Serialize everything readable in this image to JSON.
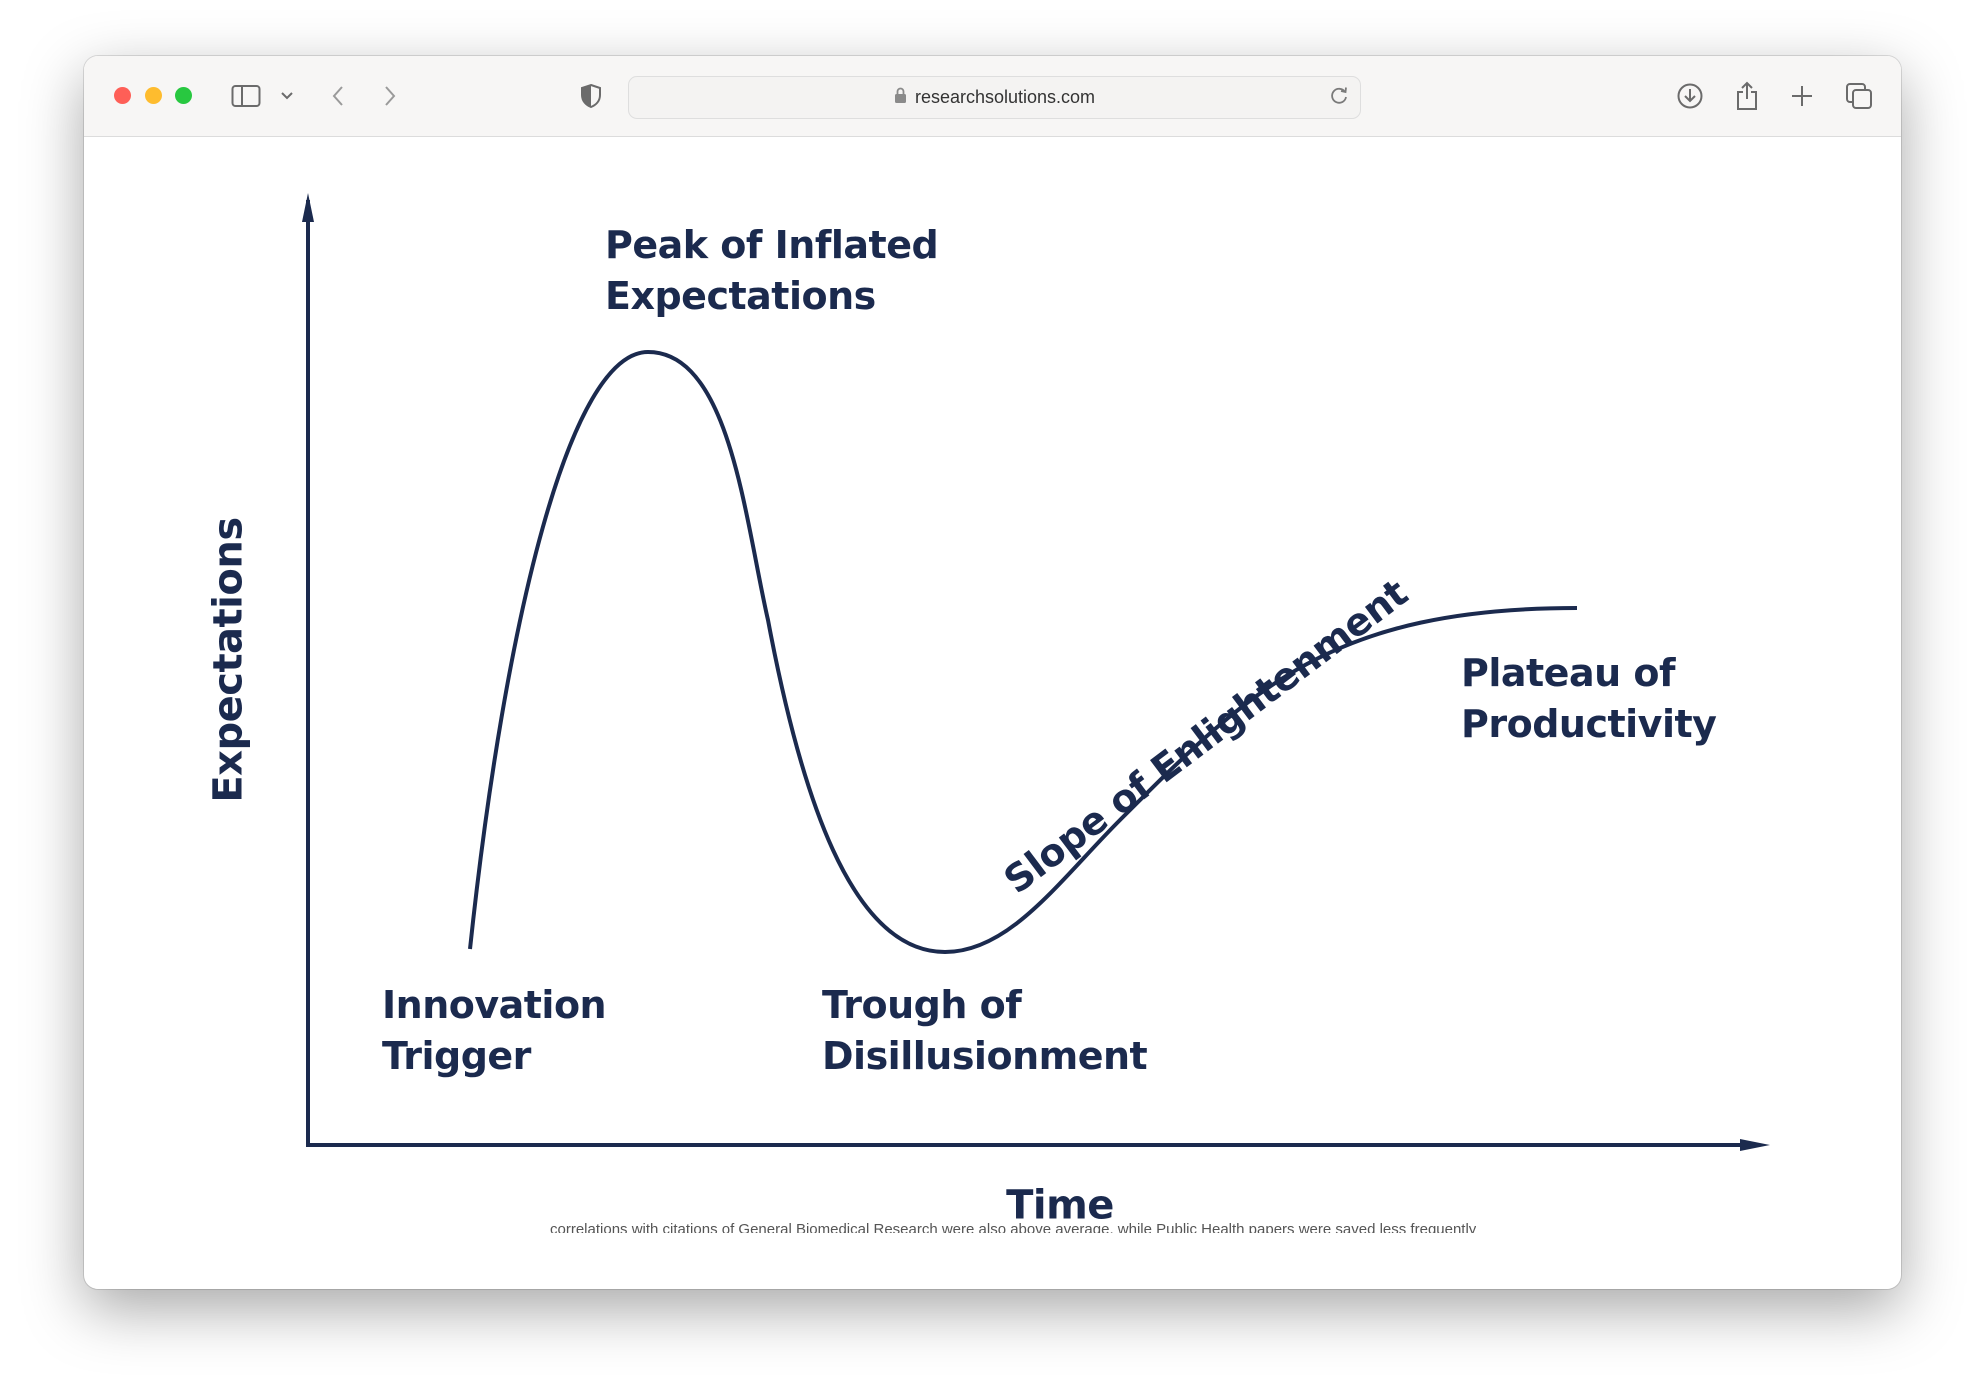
{
  "browser": {
    "url": "researchsolutions.com",
    "traffic_lights": {
      "close": "#fe5f57",
      "minimize": "#febc2e",
      "maximize": "#28c840"
    },
    "icons": [
      "sidebar-icon",
      "chevron-down-icon",
      "back-icon",
      "forward-icon",
      "shield-icon",
      "lock-icon",
      "reload-icon",
      "download-icon",
      "share-icon",
      "plus-icon",
      "tabs-icon"
    ]
  },
  "diagram": {
    "y_axis_label": "Expectations",
    "x_axis_label": "Time",
    "phases": [
      {
        "line1": "Innovation",
        "line2": "Trigger"
      },
      {
        "line1": "Peak of Inflated",
        "line2": "Expectations"
      },
      {
        "line1": "Trough of",
        "line2": "Disillusionment"
      },
      {
        "line1": "Slope of Enlightenment",
        "line2": ""
      },
      {
        "line1": "Plateau of",
        "line2": "Productivity"
      }
    ],
    "color": "#1b2a4e"
  },
  "page_footer_text": "correlations with citations of General Biomedical Research were also above average, while Public Health papers were saved less frequently"
}
